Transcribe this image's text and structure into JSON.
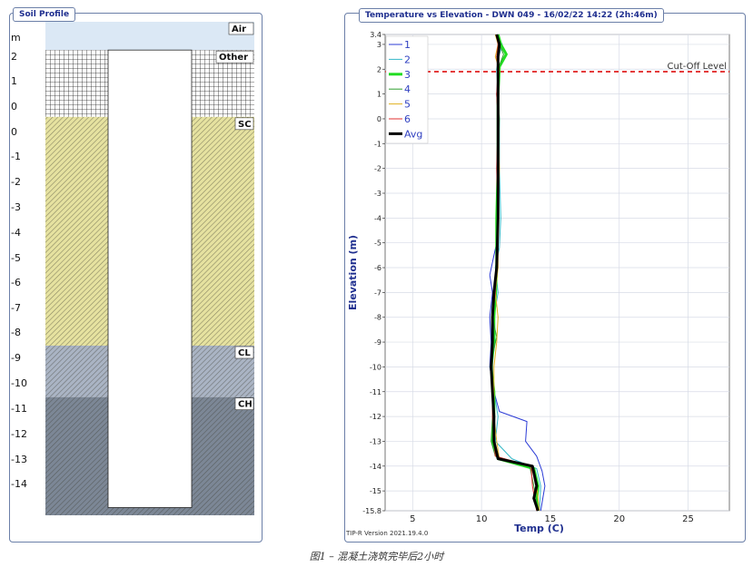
{
  "soil_profile": {
    "title": "Soil Profile",
    "unit": "m",
    "depth_labels": [
      "2",
      "1",
      "0",
      "0",
      "-1",
      "-2",
      "-3",
      "-4",
      "-5",
      "-6",
      "-7",
      "-8",
      "-9",
      "-10",
      "-11",
      "-12",
      "-13",
      "-14"
    ],
    "layers": [
      {
        "name": "Air",
        "top": 3.4,
        "bottom": 2.3,
        "fill": "#dbe8f5",
        "pattern": "none"
      },
      {
        "name": "Other",
        "top": 2.3,
        "bottom": -0.3,
        "fill": "#ffffff",
        "pattern": "grid"
      },
      {
        "name": "SC",
        "top": -0.3,
        "bottom": -9.2,
        "fill": "#e6e2a0",
        "pattern": "hatch"
      },
      {
        "name": "CL",
        "top": -9.2,
        "bottom": -11.2,
        "fill": "#aab4c4",
        "pattern": "hatch"
      },
      {
        "name": "CH",
        "top": -11.2,
        "bottom": -15.8,
        "fill": "#7c8796",
        "pattern": "hatch"
      }
    ],
    "shaft": {
      "top": 2.3,
      "bottom": -15.5
    }
  },
  "chart_data": {
    "type": "line",
    "title": "Temperature vs Elevation - DWN 049 - 16/02/22 14:22 (2h:46m)",
    "xlabel": "Temp (C)",
    "ylabel": "Elevation (m)",
    "xlim": [
      3,
      28
    ],
    "ylim": [
      -15.8,
      3.4
    ],
    "x_ticks": [
      5,
      10,
      15,
      20,
      25
    ],
    "y_ticks": [
      3.4,
      3,
      2,
      1,
      0,
      -1,
      -2,
      -3,
      -4,
      -5,
      -6,
      -7,
      -8,
      -9,
      -10,
      -11,
      -12,
      -13,
      -14,
      -15,
      -15.8
    ],
    "grid": true,
    "legend_position": "top-left",
    "cutoff": {
      "label": "Cut-Off Level",
      "elevation": 1.9,
      "color": "#e02020"
    },
    "series": [
      {
        "name": "1",
        "color": "#2b3bd6",
        "width": 1,
        "points": [
          [
            11.0,
            3.4
          ],
          [
            11.3,
            3.0
          ],
          [
            11.1,
            2.5
          ],
          [
            11.3,
            2.0
          ],
          [
            11.1,
            1.0
          ],
          [
            11.2,
            0.0
          ],
          [
            11.2,
            -2.0
          ],
          [
            11.2,
            -4.0
          ],
          [
            11.1,
            -5.0
          ],
          [
            10.9,
            -5.5
          ],
          [
            10.6,
            -6.3
          ],
          [
            10.8,
            -7.0
          ],
          [
            10.6,
            -8.0
          ],
          [
            10.7,
            -9.0
          ],
          [
            10.6,
            -10.0
          ],
          [
            10.9,
            -11.0
          ],
          [
            11.3,
            -11.8
          ],
          [
            13.3,
            -12.2
          ],
          [
            13.2,
            -13.0
          ],
          [
            14.0,
            -13.6
          ],
          [
            14.4,
            -14.2
          ],
          [
            14.6,
            -14.8
          ],
          [
            14.3,
            -15.8
          ]
        ]
      },
      {
        "name": "2",
        "color": "#35b8c8",
        "width": 1,
        "points": [
          [
            11.1,
            3.4
          ],
          [
            11.5,
            3.0
          ],
          [
            11.3,
            2.6
          ],
          [
            11.1,
            2.0
          ],
          [
            11.2,
            1.0
          ],
          [
            11.3,
            0.0
          ],
          [
            11.3,
            -2.0
          ],
          [
            11.4,
            -4.0
          ],
          [
            11.3,
            -5.2
          ],
          [
            11.0,
            -6.0
          ],
          [
            11.2,
            -7.0
          ],
          [
            10.9,
            -8.0
          ],
          [
            11.0,
            -9.0
          ],
          [
            10.7,
            -10.0
          ],
          [
            10.9,
            -11.0
          ],
          [
            11.2,
            -12.0
          ],
          [
            11.0,
            -13.0
          ],
          [
            12.2,
            -13.7
          ],
          [
            14.0,
            -14.1
          ],
          [
            14.3,
            -14.8
          ],
          [
            14.2,
            -15.8
          ]
        ]
      },
      {
        "name": "3",
        "color": "#22dd22",
        "width": 3,
        "points": [
          [
            11.2,
            3.4
          ],
          [
            11.4,
            3.0
          ],
          [
            11.8,
            2.6
          ],
          [
            11.3,
            2.1
          ],
          [
            11.2,
            1.0
          ],
          [
            11.2,
            0.0
          ],
          [
            11.2,
            -2.0
          ],
          [
            11.1,
            -4.0
          ],
          [
            11.1,
            -6.0
          ],
          [
            11.0,
            -7.2
          ],
          [
            10.9,
            -8.0
          ],
          [
            10.9,
            -9.0
          ],
          [
            10.7,
            -10.0
          ],
          [
            10.9,
            -11.0
          ],
          [
            10.9,
            -12.0
          ],
          [
            10.8,
            -13.0
          ],
          [
            11.2,
            -13.7
          ],
          [
            13.8,
            -14.1
          ],
          [
            14.1,
            -14.8
          ],
          [
            14.0,
            -15.4
          ],
          [
            14.1,
            -15.8
          ]
        ]
      },
      {
        "name": "4",
        "color": "#2fa02f",
        "width": 1,
        "points": [
          [
            11.1,
            3.4
          ],
          [
            11.3,
            3.0
          ],
          [
            11.6,
            2.6
          ],
          [
            11.2,
            2.0
          ],
          [
            11.2,
            1.0
          ],
          [
            11.3,
            0.0
          ],
          [
            11.2,
            -2.0
          ],
          [
            11.2,
            -4.0
          ],
          [
            11.1,
            -6.0
          ],
          [
            11.0,
            -7.0
          ],
          [
            10.8,
            -8.0
          ],
          [
            11.1,
            -8.8
          ],
          [
            10.8,
            -9.5
          ],
          [
            10.8,
            -11.0
          ],
          [
            10.8,
            -12.0
          ],
          [
            10.7,
            -13.0
          ],
          [
            11.0,
            -13.6
          ],
          [
            13.5,
            -14.0
          ],
          [
            13.8,
            -14.8
          ],
          [
            14.1,
            -15.8
          ]
        ]
      },
      {
        "name": "5",
        "color": "#e0b020",
        "width": 1,
        "points": [
          [
            11.0,
            3.4
          ],
          [
            11.2,
            3.0
          ],
          [
            11.0,
            2.5
          ],
          [
            11.3,
            2.0
          ],
          [
            11.1,
            1.0
          ],
          [
            11.2,
            0.0
          ],
          [
            11.3,
            -2.0
          ],
          [
            11.2,
            -4.0
          ],
          [
            11.2,
            -6.0
          ],
          [
            11.0,
            -7.0
          ],
          [
            11.2,
            -8.0
          ],
          [
            11.1,
            -9.0
          ],
          [
            10.9,
            -10.0
          ],
          [
            10.9,
            -11.0
          ],
          [
            10.9,
            -12.0
          ],
          [
            11.1,
            -13.0
          ],
          [
            11.3,
            -13.7
          ],
          [
            13.6,
            -14.0
          ],
          [
            14.0,
            -14.8
          ],
          [
            14.2,
            -15.8
          ]
        ]
      },
      {
        "name": "6",
        "color": "#e03030",
        "width": 1,
        "points": [
          [
            11.1,
            3.4
          ],
          [
            11.2,
            3.0
          ],
          [
            11.1,
            2.5
          ],
          [
            11.2,
            2.0
          ],
          [
            11.1,
            1.0
          ],
          [
            11.2,
            0.0
          ],
          [
            11.1,
            -2.0
          ],
          [
            11.2,
            -4.0
          ],
          [
            11.1,
            -6.0
          ],
          [
            11.0,
            -7.0
          ],
          [
            10.8,
            -8.0
          ],
          [
            10.8,
            -9.0
          ],
          [
            10.7,
            -10.0
          ],
          [
            10.8,
            -11.0
          ],
          [
            10.8,
            -12.0
          ],
          [
            10.9,
            -13.0
          ],
          [
            11.0,
            -13.6
          ],
          [
            13.6,
            -14.0
          ],
          [
            13.7,
            -14.8
          ],
          [
            14.0,
            -15.8
          ]
        ]
      },
      {
        "name": "Avg",
        "color": "#000000",
        "width": 3,
        "points": [
          [
            11.1,
            3.4
          ],
          [
            11.3,
            3.0
          ],
          [
            11.2,
            2.5
          ],
          [
            11.2,
            2.0
          ],
          [
            11.2,
            1.0
          ],
          [
            11.2,
            0.0
          ],
          [
            11.2,
            -2.0
          ],
          [
            11.2,
            -4.0
          ],
          [
            11.1,
            -6.0
          ],
          [
            10.9,
            -7.0
          ],
          [
            10.8,
            -8.0
          ],
          [
            10.8,
            -9.0
          ],
          [
            10.7,
            -10.0
          ],
          [
            10.8,
            -11.0
          ],
          [
            10.9,
            -12.0
          ],
          [
            10.9,
            -13.0
          ],
          [
            11.2,
            -13.7
          ],
          [
            13.7,
            -14.0
          ],
          [
            14.0,
            -14.8
          ],
          [
            13.8,
            -15.3
          ],
          [
            14.1,
            -15.8
          ]
        ]
      }
    ]
  },
  "footer": {
    "version": "TIP-R Version 2021.19.4.0",
    "caption": "图1 – 混凝土浇筑完毕后2小时"
  }
}
